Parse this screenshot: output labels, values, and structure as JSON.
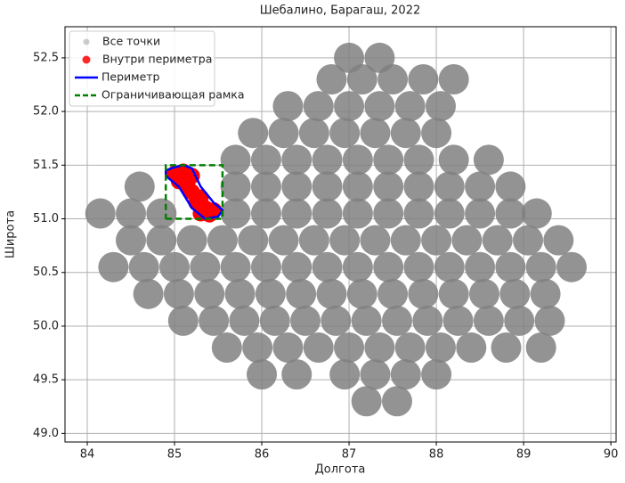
{
  "chart_data": {
    "type": "scatter",
    "title": "Шебалино, Барагаш, 2022",
    "xlabel": "Долгота",
    "ylabel": "Широта",
    "xlim": [
      83.745,
      90.06
    ],
    "ylim": [
      48.92,
      52.79
    ],
    "xticks": [
      84,
      85,
      86,
      87,
      88,
      89,
      90
    ],
    "yticks": [
      {
        "value": 49,
        "label": "49.0"
      },
      {
        "value": 49.5,
        "label": "49.5"
      },
      {
        "value": 50,
        "label": "50.0"
      },
      {
        "value": 50.5,
        "label": "50.5"
      },
      {
        "value": 51,
        "label": "51.0"
      },
      {
        "value": 51.5,
        "label": "51.5"
      },
      {
        "value": 52,
        "label": "52.0"
      },
      {
        "value": 52.5,
        "label": "52.5"
      }
    ],
    "grid": true,
    "legend": "upper left",
    "series": [
      {
        "name": "Все точки",
        "color": "#808080",
        "x": [
          87.0,
          87.35,
          86.8,
          87.15,
          87.5,
          87.85,
          88.2,
          86.3,
          86.65,
          87.0,
          87.35,
          87.7,
          88.05,
          85.9,
          86.25,
          86.6,
          86.95,
          87.3,
          87.65,
          88.0,
          85.7,
          86.05,
          86.4,
          86.75,
          87.1,
          87.45,
          87.8,
          88.2,
          88.6,
          84.6,
          85.7,
          86.05,
          86.4,
          86.75,
          87.1,
          87.45,
          87.8,
          88.15,
          88.5,
          88.85,
          84.15,
          84.5,
          84.85,
          85.7,
          86.05,
          86.4,
          86.75,
          87.1,
          87.45,
          87.8,
          88.15,
          88.5,
          88.85,
          89.15,
          84.5,
          84.85,
          85.2,
          85.55,
          85.9,
          86.25,
          86.6,
          86.95,
          87.3,
          87.65,
          88.0,
          88.35,
          88.7,
          89.05,
          89.4,
          84.3,
          84.65,
          85.0,
          85.35,
          85.7,
          86.05,
          86.4,
          86.75,
          87.1,
          87.45,
          87.8,
          88.15,
          88.5,
          88.85,
          89.2,
          89.55,
          84.7,
          85.05,
          85.4,
          85.75,
          86.1,
          86.45,
          86.8,
          87.15,
          87.5,
          87.85,
          88.2,
          88.55,
          88.9,
          89.25,
          85.1,
          85.45,
          85.8,
          86.15,
          86.5,
          86.85,
          87.2,
          87.55,
          87.9,
          88.25,
          88.6,
          88.95,
          89.3,
          85.6,
          85.95,
          86.3,
          86.65,
          87.0,
          87.35,
          87.7,
          88.05,
          88.4,
          88.8,
          89.2,
          86.0,
          86.4,
          86.95,
          87.3,
          87.65,
          88.0,
          87.2,
          87.55
        ],
        "values": [
          52.5,
          52.5,
          52.3,
          52.3,
          52.3,
          52.3,
          52.3,
          52.05,
          52.05,
          52.05,
          52.05,
          52.05,
          52.05,
          51.8,
          51.8,
          51.8,
          51.8,
          51.8,
          51.8,
          51.8,
          51.55,
          51.55,
          51.55,
          51.55,
          51.55,
          51.55,
          51.55,
          51.55,
          51.55,
          51.3,
          51.3,
          51.3,
          51.3,
          51.3,
          51.3,
          51.3,
          51.3,
          51.3,
          51.3,
          51.3,
          51.05,
          51.05,
          51.05,
          51.05,
          51.05,
          51.05,
          51.05,
          51.05,
          51.05,
          51.05,
          51.05,
          51.05,
          51.05,
          51.05,
          50.8,
          50.8,
          50.8,
          50.8,
          50.8,
          50.8,
          50.8,
          50.8,
          50.8,
          50.8,
          50.8,
          50.8,
          50.8,
          50.8,
          50.8,
          50.55,
          50.55,
          50.55,
          50.55,
          50.55,
          50.55,
          50.55,
          50.55,
          50.55,
          50.55,
          50.55,
          50.55,
          50.55,
          50.55,
          50.55,
          50.55,
          50.3,
          50.3,
          50.3,
          50.3,
          50.3,
          50.3,
          50.3,
          50.3,
          50.3,
          50.3,
          50.3,
          50.3,
          50.3,
          50.3,
          50.05,
          50.05,
          50.05,
          50.05,
          50.05,
          50.05,
          50.05,
          50.05,
          50.05,
          50.05,
          50.05,
          50.05,
          50.05,
          49.8,
          49.8,
          49.8,
          49.8,
          49.8,
          49.8,
          49.8,
          49.8,
          49.8,
          49.8,
          49.8,
          49.55,
          49.55,
          49.55,
          49.55,
          49.55,
          49.55,
          49.3,
          49.3
        ]
      },
      {
        "name": "Внутри периметра",
        "color": "#ff0000",
        "x": [
          85.0,
          85.1,
          85.15,
          85.05,
          85.2,
          85.25,
          85.3,
          85.35,
          85.45,
          85.4,
          85.15,
          85.2,
          85.3
        ],
        "values": [
          51.42,
          51.44,
          51.35,
          51.35,
          51.25,
          51.15,
          51.2,
          51.1,
          51.08,
          51.04,
          51.3,
          51.4,
          51.05
        ]
      },
      {
        "name": "Периметр",
        "color": "#0000ff",
        "style": "line",
        "x": [
          84.9,
          85.0,
          85.1,
          85.2,
          85.3,
          85.45,
          85.55,
          85.5,
          85.35,
          85.2,
          85.05,
          84.9,
          84.9
        ],
        "values": [
          51.45,
          51.48,
          51.5,
          51.47,
          51.3,
          51.15,
          51.08,
          51.02,
          51.0,
          51.1,
          51.3,
          51.4,
          51.45
        ]
      },
      {
        "name": "Ограничивающая рамка",
        "color": "#008000",
        "style": "dashed",
        "x": [
          84.9,
          85.55,
          85.55,
          84.9,
          84.9
        ],
        "values": [
          51.0,
          51.0,
          51.5,
          51.5,
          51.0
        ]
      }
    ]
  }
}
